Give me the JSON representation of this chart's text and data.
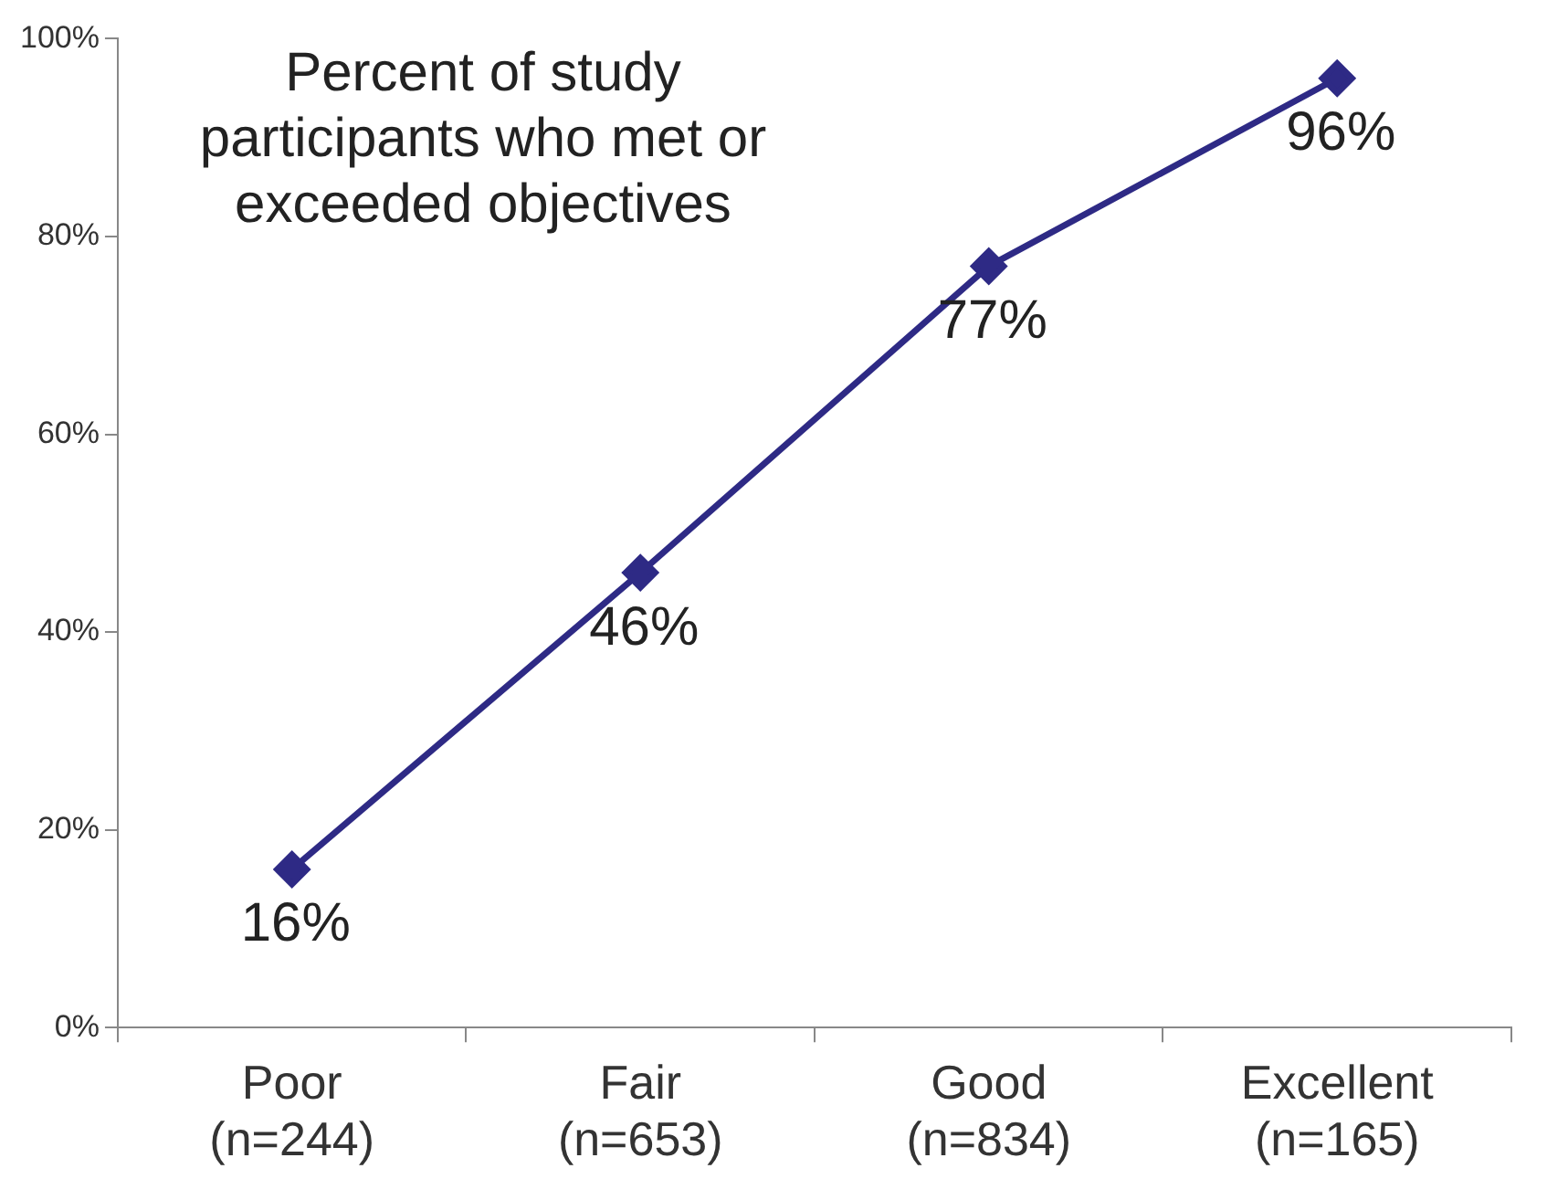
{
  "chart_data": {
    "type": "line",
    "title": "Percent of study participants who met or exceeded objectives",
    "categories": [
      "Poor\n(n=244)",
      "Fair\n(n=653)",
      "Good\n(n=834)",
      "Excellent\n(n=165)"
    ],
    "series": [
      {
        "color": "#2e2a85",
        "values": [
          16,
          46,
          77,
          96
        ],
        "value_labels": [
          "16%",
          "46%",
          "77%",
          "96%"
        ]
      }
    ],
    "ylim": [
      0,
      100
    ],
    "yticks": [
      {
        "value": 0,
        "label": "0%"
      },
      {
        "value": 20,
        "label": "20%"
      },
      {
        "value": 40,
        "label": "40%"
      },
      {
        "value": 60,
        "label": "60%"
      },
      {
        "value": 80,
        "label": "80%"
      },
      {
        "value": 100,
        "label": "100%"
      }
    ],
    "grid": false,
    "legend": false,
    "marker": "diamond",
    "line_style": "solid"
  }
}
